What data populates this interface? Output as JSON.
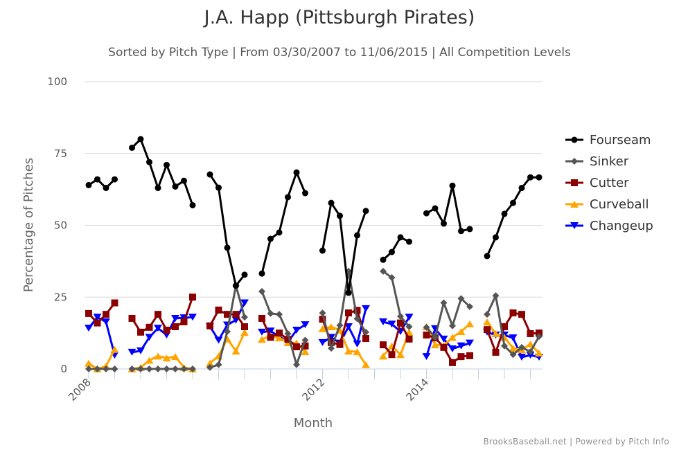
{
  "chart_data": {
    "type": "line",
    "title": "J.A. Happ (Pittsburgh Pirates)",
    "subtitle": "Sorted by Pitch Type | From 03/30/2007 to 11/06/2015 | All Competition Levels",
    "xlabel": "Month",
    "ylabel": "Percentage of Pitches",
    "ylim": [
      0,
      100
    ],
    "yticks": [
      0,
      25,
      50,
      75,
      100
    ],
    "grid": true,
    "legend_position": "right",
    "x_category_count": 53,
    "x_tick_every": 3,
    "x_labels": [
      {
        "index": 0,
        "label": "2008"
      },
      {
        "index": 27,
        "label": "2012"
      },
      {
        "index": 39,
        "label": "2014"
      }
    ],
    "segments": [
      {
        "start": 0,
        "length": 4
      },
      {
        "start": 5,
        "length": 8
      },
      {
        "start": 14,
        "length": 5
      },
      {
        "start": 20,
        "length": 6
      },
      {
        "start": 27,
        "length": 6
      },
      {
        "start": 34,
        "length": 4
      },
      {
        "start": 39,
        "length": 6
      },
      {
        "start": 46,
        "length": 7
      }
    ],
    "series": [
      {
        "name": "Fourseam",
        "color": "#000000",
        "marker": "circle",
        "values": [
          [
            64,
            66,
            63,
            66
          ],
          [
            77,
            80,
            72,
            63,
            71,
            63.5,
            65.5,
            57
          ],
          [
            67.7,
            63.1,
            42.2,
            29,
            32.8
          ],
          [
            33.2,
            45.3,
            47.5,
            59.8,
            68.4,
            61.2
          ],
          [
            41.2,
            57.8,
            53.3,
            26.5,
            46.5,
            55
          ],
          [
            38,
            40.7,
            45.8,
            44.3
          ],
          [
            54.2,
            55.9,
            50.6,
            63.8,
            48,
            48.7
          ],
          [
            39.3,
            45.8,
            54,
            57.8,
            63,
            66.7,
            66.7
          ]
        ]
      },
      {
        "name": "Sinker",
        "color": "#555555",
        "marker": "diamond",
        "values": [
          [
            0,
            0,
            0,
            0
          ],
          [
            0,
            0,
            0,
            0,
            0,
            0,
            0,
            0
          ],
          [
            0.5,
            1.5,
            13,
            29,
            18
          ],
          [
            27,
            19.3,
            19,
            12.3,
            1.5,
            10
          ],
          [
            19.5,
            7.2,
            15.2,
            34,
            17.5,
            12.8
          ],
          [
            34,
            31.8,
            18.3,
            14.7
          ],
          [
            14.5,
            11,
            23,
            15,
            24.5,
            21.7
          ],
          [
            19,
            25.5,
            8,
            5,
            7.5,
            6,
            11.3
          ]
        ]
      },
      {
        "name": "Cutter",
        "color": "#8b0000",
        "marker": "square",
        "values": [
          [
            19.3,
            16,
            19,
            23
          ],
          [
            17.6,
            12.8,
            14.5,
            19,
            13.5,
            14.7,
            16.4,
            25
          ],
          [
            15,
            20.5,
            19,
            19,
            14.7
          ],
          [
            17.6,
            11,
            12.5,
            10.3,
            7.7,
            8
          ],
          [
            17.3,
            9.2,
            8.5,
            19.5,
            20.4,
            10.6
          ],
          [
            8.4,
            5,
            16,
            10.4
          ],
          [
            11.8,
            10.8,
            7.5,
            2.2,
            4.3,
            4.6
          ],
          [
            13.7,
            5.8,
            14.7,
            19.5,
            19,
            12.3,
            12.5
          ]
        ]
      },
      {
        "name": "Curveball",
        "color": "#ffa500",
        "marker": "triangle",
        "values": [
          [
            2,
            0,
            1,
            6.8
          ],
          [
            0,
            0.5,
            3,
            4.5,
            3.8,
            4.3,
            0.5,
            0
          ],
          [
            2,
            4.5,
            10.5,
            6.2,
            12.7
          ],
          [
            10.3,
            11.5,
            10.8,
            9.2,
            9,
            6
          ],
          [
            14,
            14.7,
            13.5,
            6.2,
            6,
            1.5
          ],
          [
            4.5,
            8,
            5,
            12.8
          ],
          [
            14.7,
            8.4,
            8.2,
            11,
            13,
            15.7
          ],
          [
            16.4,
            12.3,
            11,
            7.2,
            6.7,
            8.7,
            5.5
          ]
        ]
      },
      {
        "name": "Changeup",
        "color": "#0000ff",
        "marker": "triangle-down",
        "values": [
          [
            14.2,
            18,
            16.4,
            4.8
          ],
          [
            5.8,
            6.3,
            11,
            14.2,
            11.8,
            17.6,
            17.8,
            18
          ],
          [
            14.8,
            10,
            15.3,
            17,
            23
          ],
          [
            12.8,
            13.2,
            11.3,
            9.4,
            13.5,
            15.4
          ],
          [
            9.2,
            11,
            9,
            14.7,
            8.7,
            21
          ],
          [
            16.4,
            15.6,
            13,
            18
          ],
          [
            4.3,
            14,
            10.4,
            7,
            8,
            9
          ],
          [
            12.8,
            11.8,
            11.8,
            10.8,
            4.1,
            4.8,
            4.1
          ]
        ]
      }
    ]
  },
  "credits": "BrooksBaseball.net | Powered by Pitch Info"
}
